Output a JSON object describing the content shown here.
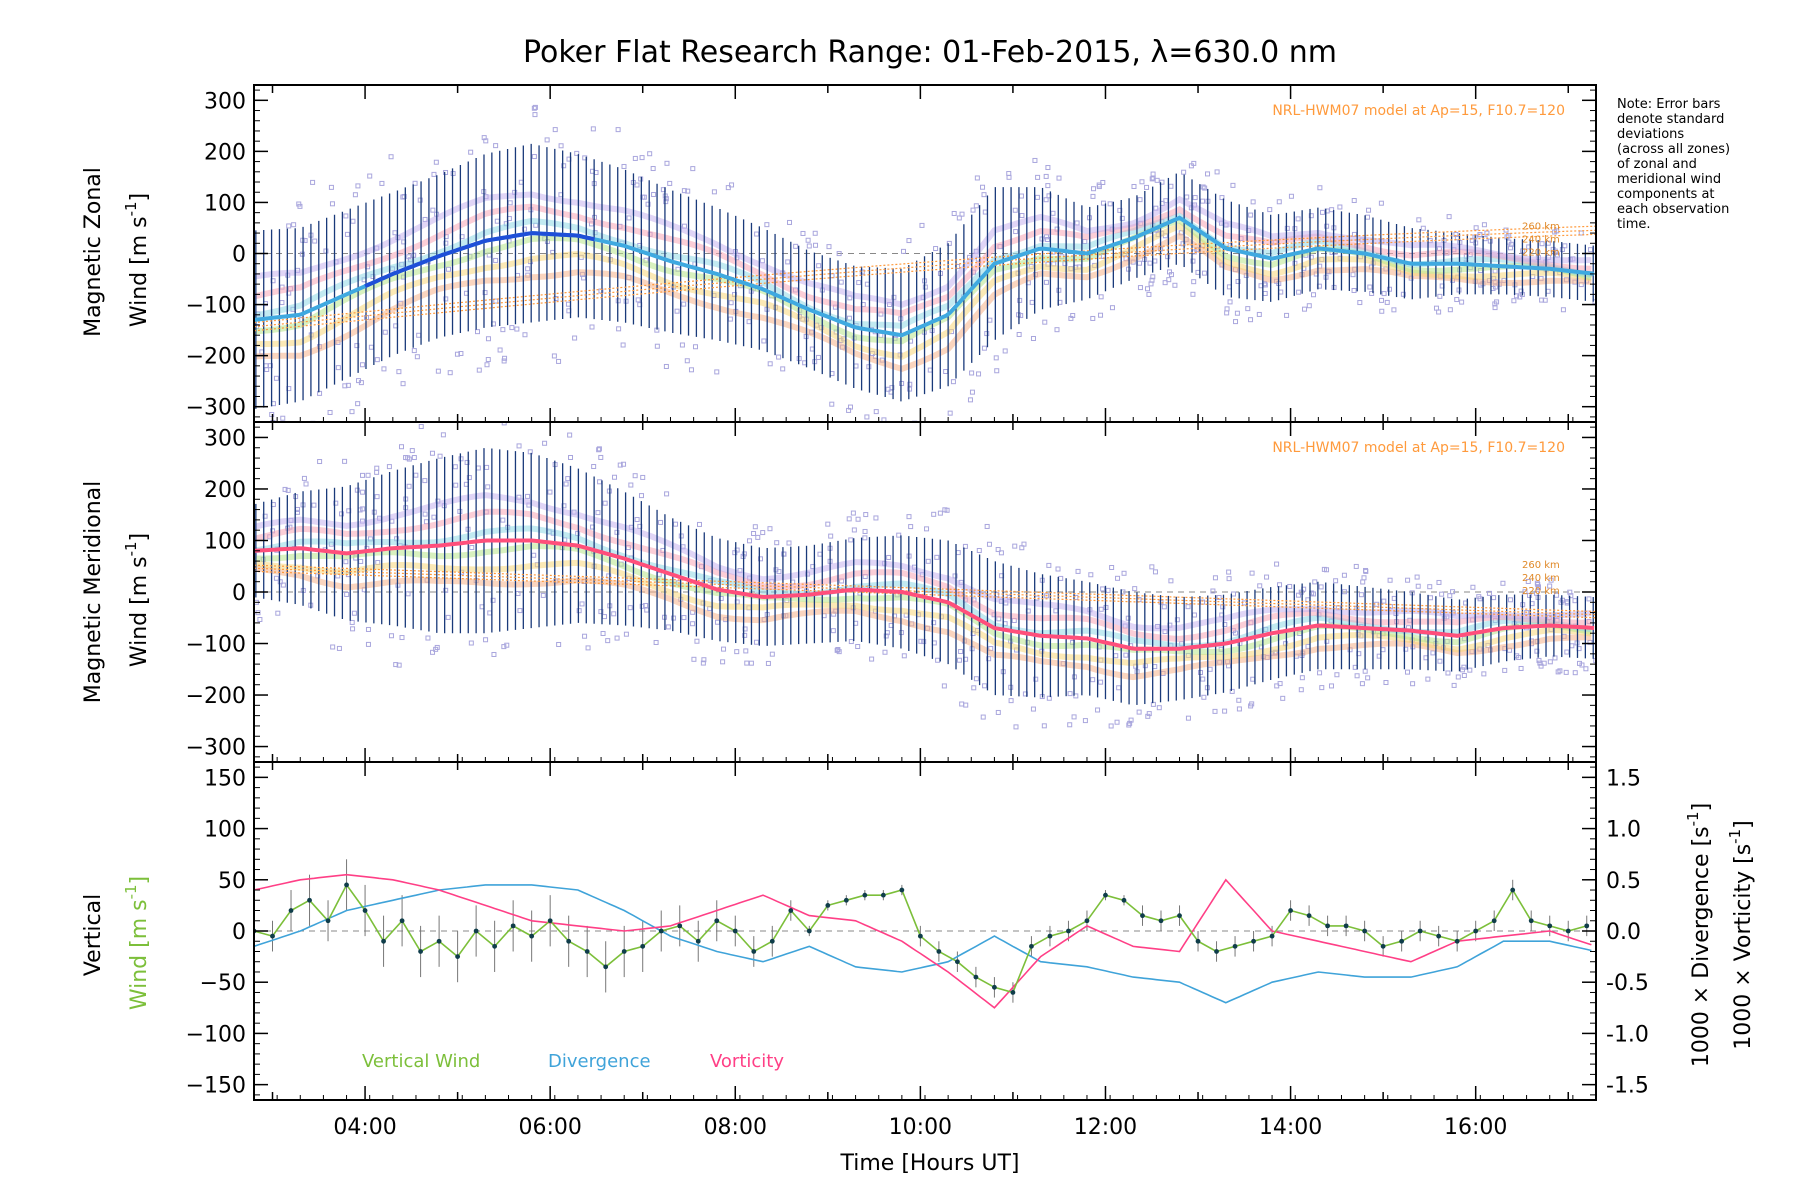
{
  "title": "Poker Flat Research Range: 01-Feb-2015, λ=630.0 nm",
  "note": [
    "Note: Error bars",
    "denote standard",
    "deviations",
    "(across all zones)",
    "of zonal and",
    "meridional wind",
    "components at",
    "each observation",
    "time."
  ],
  "model_label": "NRL-HWM07 model at Ap=15, F10.7=120",
  "altitude_labels": [
    "260 km",
    "240 km",
    "220 km"
  ],
  "xlabel": "Time [Hours UT]",
  "x_ticks": [
    "04:00",
    "06:00",
    "08:00",
    "10:00",
    "12:00",
    "14:00",
    "16:00"
  ],
  "panels": {
    "zonal": {
      "ylabel_line1": "Magnetic Zonal",
      "ylabel_line2": "Wind [m s",
      "ylabel_sup": "-1",
      "ylabel_close": "]"
    },
    "meridional": {
      "ylabel_line1": "Magnetic Meridional",
      "ylabel_line2": "Wind [m s",
      "ylabel_sup": "-1",
      "ylabel_close": "]"
    },
    "vertical": {
      "ylabel_line1": "Vertical",
      "ylabel_line2": "Wind [m s",
      "ylabel_sup": "-1",
      "ylabel_close": "]",
      "right_label_div": "1000 × Divergence [s",
      "right_label_vort": "1000 × Vorticity [s",
      "right_sup": "-1",
      "right_close": "]"
    }
  },
  "legend": {
    "vertical": "Vertical Wind",
    "divergence": "Divergence",
    "vorticity": "Vorticity"
  },
  "colors": {
    "zonal_mean": "#3fa9e0",
    "zonal_mean_early": "#1f4fd8",
    "meridional_mean": "#ff4f7b",
    "errorbar": "#1a3a7a",
    "scatter": "#a9a6dd",
    "model": "#ff9a3c",
    "vertical": "#7cbf3a",
    "vertical_point": "#0f3d4a",
    "divergence": "#3fa3d9",
    "vorticity": "#ff3f86",
    "zero_line": "#888888"
  },
  "chart_data": [
    {
      "type": "line",
      "title": "Magnetic Zonal Wind",
      "ylabel": "Magnetic Zonal Wind [m s-1]",
      "xlim": [
        2.8,
        17.3
      ],
      "ylim": [
        -330,
        330
      ],
      "y_ticks": [
        300,
        200,
        100,
        0,
        -100,
        -200,
        -300
      ],
      "series": [
        {
          "name": "mean zonal wind",
          "x": [
            2.8,
            3.3,
            3.8,
            4.3,
            4.8,
            5.3,
            5.8,
            6.3,
            6.8,
            7.3,
            7.8,
            8.3,
            8.8,
            9.3,
            9.8,
            10.3,
            10.8,
            11.3,
            11.8,
            12.3,
            12.8,
            13.3,
            13.8,
            14.3,
            14.8,
            15.3,
            15.8,
            16.3,
            16.8,
            17.3
          ],
          "y": [
            -130,
            -120,
            -80,
            -40,
            -5,
            25,
            40,
            35,
            15,
            -15,
            -40,
            -70,
            -110,
            -145,
            -160,
            -120,
            -20,
            10,
            0,
            30,
            70,
            10,
            -10,
            10,
            0,
            -20,
            -20,
            -25,
            -30,
            -40
          ]
        }
      ],
      "error_std": [
        175,
        170,
        165,
        160,
        160,
        170,
        175,
        160,
        150,
        140,
        130,
        120,
        115,
        120,
        130,
        140,
        150,
        120,
        90,
        80,
        90,
        95,
        85,
        80,
        75,
        70,
        60,
        55,
        55,
        55
      ]
    },
    {
      "type": "line",
      "title": "Magnetic Meridional Wind",
      "ylabel": "Magnetic Meridional Wind [m s-1]",
      "xlim": [
        2.8,
        17.3
      ],
      "ylim": [
        -330,
        330
      ],
      "y_ticks": [
        300,
        200,
        100,
        0,
        -100,
        -200,
        -300
      ],
      "series": [
        {
          "name": "mean meridional wind",
          "x": [
            2.8,
            3.3,
            3.8,
            4.3,
            4.8,
            5.3,
            5.8,
            6.3,
            6.8,
            7.3,
            7.8,
            8.3,
            8.8,
            9.3,
            9.8,
            10.3,
            10.8,
            11.3,
            11.8,
            12.3,
            12.8,
            13.3,
            13.8,
            14.3,
            14.8,
            15.3,
            15.8,
            16.3,
            16.8,
            17.3
          ],
          "y": [
            80,
            85,
            75,
            85,
            90,
            100,
            100,
            90,
            65,
            35,
            5,
            -10,
            -5,
            5,
            0,
            -20,
            -70,
            -85,
            -90,
            -110,
            -110,
            -100,
            -80,
            -65,
            -70,
            -75,
            -85,
            -70,
            -65,
            -70
          ]
        }
      ],
      "error_std": [
        90,
        110,
        130,
        150,
        170,
        180,
        170,
        150,
        130,
        110,
        100,
        95,
        95,
        100,
        110,
        120,
        130,
        120,
        110,
        110,
        100,
        95,
        90,
        85,
        80,
        75,
        70,
        65,
        60,
        60
      ]
    },
    {
      "type": "line",
      "title": "Vertical Wind, Divergence, Vorticity",
      "ylabel": "Vertical Wind [m s-1]",
      "xlim": [
        2.8,
        17.3
      ],
      "ylim": [
        -165,
        165
      ],
      "y_ticks": [
        150,
        100,
        50,
        0,
        -50,
        -100,
        -150
      ],
      "y2lim": [
        -1.65,
        1.65
      ],
      "y2_ticks": [
        "1.5",
        "1.0",
        "0.5",
        "0.0",
        "-0.5",
        "-1.0",
        "-1.5"
      ],
      "y2_values": [
        1.5,
        1.0,
        0.5,
        0.0,
        -0.5,
        -1.0,
        -1.5
      ],
      "series": [
        {
          "name": "Vertical Wind",
          "x": [
            2.8,
            3.0,
            3.2,
            3.4,
            3.6,
            3.8,
            4.0,
            4.2,
            4.4,
            4.6,
            4.8,
            5.0,
            5.2,
            5.4,
            5.6,
            5.8,
            6.0,
            6.2,
            6.4,
            6.6,
            6.8,
            7.0,
            7.2,
            7.4,
            7.6,
            7.8,
            8.0,
            8.2,
            8.4,
            8.6,
            8.8,
            9.0,
            9.2,
            9.4,
            9.6,
            9.8,
            10.0,
            10.2,
            10.4,
            10.6,
            10.8,
            11.0,
            11.2,
            11.4,
            11.6,
            11.8,
            12.0,
            12.2,
            12.4,
            12.6,
            12.8,
            13.0,
            13.2,
            13.4,
            13.6,
            13.8,
            14.0,
            14.2,
            14.4,
            14.6,
            14.8,
            15.0,
            15.2,
            15.4,
            15.6,
            15.8,
            16.0,
            16.2,
            16.4,
            16.6,
            16.8,
            17.0,
            17.2
          ],
          "y": [
            0,
            -5,
            20,
            30,
            10,
            45,
            20,
            -10,
            10,
            -20,
            -10,
            -25,
            0,
            -15,
            5,
            -5,
            10,
            -10,
            -20,
            -35,
            -20,
            -15,
            0,
            5,
            -10,
            10,
            0,
            -20,
            -10,
            20,
            0,
            25,
            30,
            35,
            35,
            40,
            -5,
            -20,
            -30,
            -45,
            -55,
            -60,
            -15,
            -5,
            0,
            10,
            35,
            30,
            15,
            10,
            15,
            -10,
            -20,
            -15,
            -10,
            -5,
            20,
            15,
            5,
            5,
            0,
            -15,
            -10,
            0,
            -5,
            -10,
            0,
            10,
            40,
            10,
            5,
            0,
            5
          ],
          "error": [
            15,
            15,
            20,
            25,
            20,
            25,
            25,
            25,
            25,
            25,
            25,
            25,
            25,
            25,
            25,
            25,
            25,
            25,
            25,
            25,
            25,
            25,
            20,
            20,
            20,
            20,
            15,
            15,
            15,
            10,
            5,
            5,
            5,
            5,
            5,
            5,
            10,
            10,
            10,
            10,
            10,
            10,
            10,
            10,
            10,
            10,
            5,
            5,
            10,
            10,
            10,
            10,
            10,
            10,
            10,
            10,
            10,
            10,
            10,
            10,
            10,
            10,
            10,
            10,
            10,
            10,
            10,
            10,
            10,
            10,
            10,
            10,
            10
          ]
        },
        {
          "name": "Divergence",
          "axis": "right",
          "x": [
            2.8,
            3.3,
            3.8,
            4.3,
            4.8,
            5.3,
            5.8,
            6.3,
            6.8,
            7.3,
            7.8,
            8.3,
            8.8,
            9.3,
            9.8,
            10.3,
            10.8,
            11.3,
            11.8,
            12.3,
            12.8,
            13.3,
            13.8,
            14.3,
            14.8,
            15.3,
            15.8,
            16.3,
            16.8,
            17.3
          ],
          "y": [
            -0.15,
            0.0,
            0.2,
            0.3,
            0.4,
            0.45,
            0.45,
            0.4,
            0.2,
            -0.05,
            -0.2,
            -0.3,
            -0.15,
            -0.35,
            -0.4,
            -0.3,
            -0.05,
            -0.3,
            -0.35,
            -0.45,
            -0.5,
            -0.7,
            -0.5,
            -0.4,
            -0.45,
            -0.45,
            -0.35,
            -0.1,
            -0.1,
            -0.2
          ]
        },
        {
          "name": "Vorticity",
          "axis": "right",
          "x": [
            2.8,
            3.3,
            3.8,
            4.3,
            4.8,
            5.3,
            5.8,
            6.3,
            6.8,
            7.3,
            7.8,
            8.3,
            8.8,
            9.3,
            9.8,
            10.3,
            10.8,
            11.3,
            11.8,
            12.3,
            12.8,
            13.3,
            13.8,
            14.3,
            14.8,
            15.3,
            15.8,
            16.3,
            16.8,
            17.3
          ],
          "y": [
            0.4,
            0.5,
            0.55,
            0.5,
            0.4,
            0.25,
            0.1,
            0.05,
            0.0,
            0.05,
            0.2,
            0.35,
            0.15,
            0.1,
            -0.1,
            -0.4,
            -0.75,
            -0.25,
            0.05,
            -0.15,
            -0.2,
            0.5,
            0.0,
            -0.1,
            -0.2,
            -0.3,
            -0.1,
            -0.05,
            0.0,
            -0.15
          ]
        }
      ]
    }
  ]
}
